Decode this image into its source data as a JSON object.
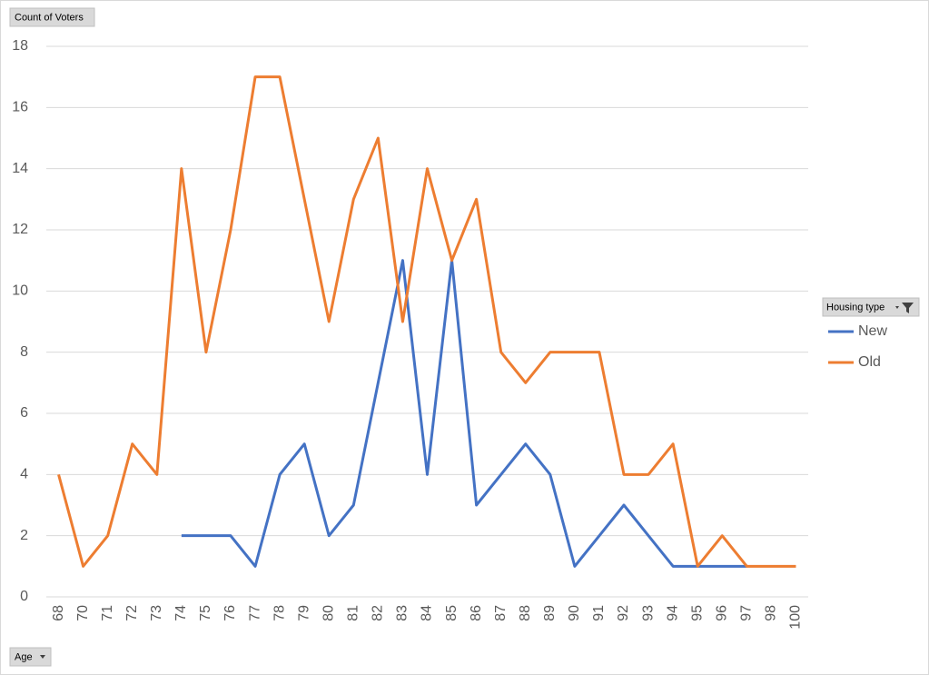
{
  "chart_data": {
    "type": "line",
    "y_field": "Count of Voters",
    "x_field": "Age",
    "legend_title": "Housing type",
    "categories": [
      "68",
      "70",
      "71",
      "72",
      "73",
      "74",
      "75",
      "76",
      "77",
      "78",
      "79",
      "80",
      "81",
      "82",
      "83",
      "84",
      "85",
      "86",
      "87",
      "88",
      "89",
      "90",
      "91",
      "92",
      "93",
      "94",
      "95",
      "96",
      "97",
      "98",
      "100"
    ],
    "series": [
      {
        "name": "New",
        "color": "#4472c4",
        "values": [
          null,
          null,
          null,
          null,
          null,
          2,
          2,
          2,
          1,
          4,
          5,
          2,
          3,
          7,
          11,
          4,
          11,
          3,
          4,
          5,
          4,
          1,
          2,
          3,
          2,
          1,
          1,
          1,
          1,
          null,
          null
        ]
      },
      {
        "name": "Old",
        "color": "#ed7d31",
        "values": [
          4,
          1,
          2,
          5,
          4,
          14,
          8,
          12,
          17,
          17,
          13,
          9,
          13,
          15,
          9,
          14,
          11,
          13,
          8,
          7,
          8,
          8,
          8,
          4,
          4,
          5,
          1,
          2,
          1,
          1,
          1
        ]
      }
    ],
    "ylim": [
      0,
      18
    ],
    "yticks": [
      0,
      2,
      4,
      6,
      8,
      10,
      12,
      14,
      16,
      18
    ],
    "grid": true,
    "legend": "right"
  }
}
